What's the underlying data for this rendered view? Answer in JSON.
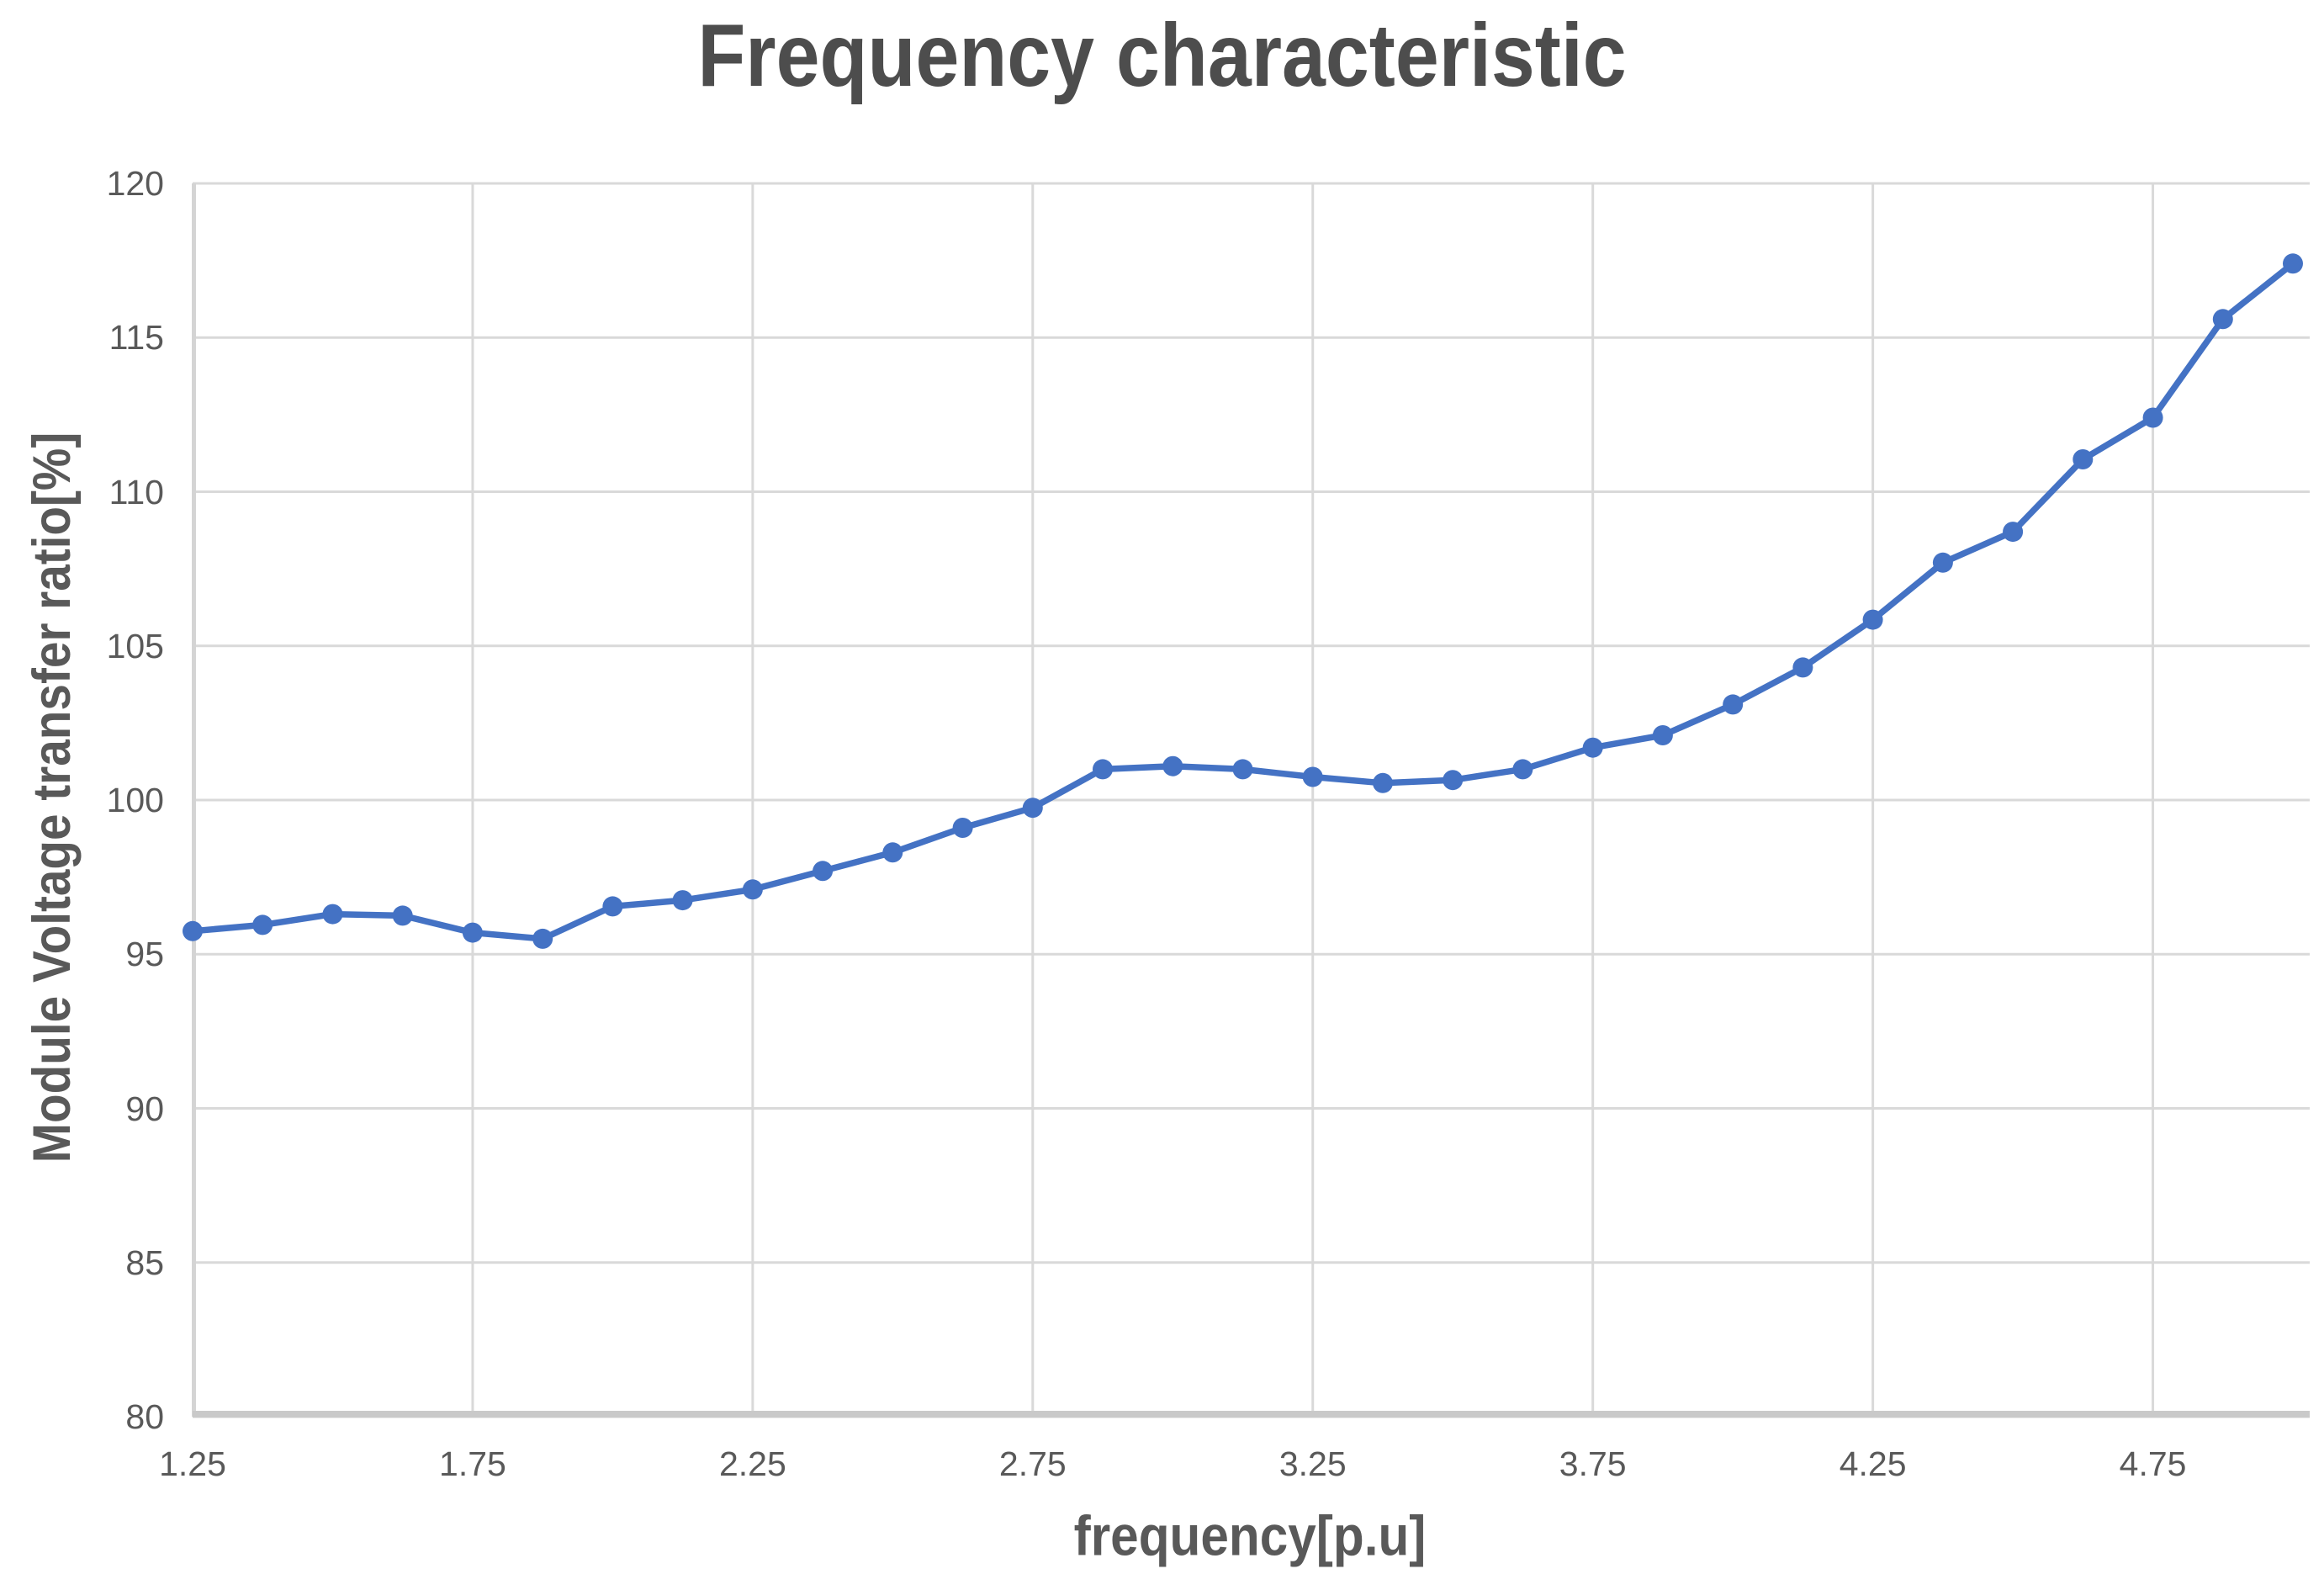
{
  "chart_data": {
    "type": "line",
    "title": "Frequency characteristic",
    "xlabel": "frequency[p.u]",
    "ylabel": "Module Voltage transfer ratio[%]",
    "x": [
      1.25,
      1.375,
      1.5,
      1.625,
      1.75,
      1.875,
      2.0,
      2.125,
      2.25,
      2.375,
      2.5,
      2.625,
      2.75,
      2.875,
      3.0,
      3.125,
      3.25,
      3.375,
      3.5,
      3.625,
      3.75,
      3.875,
      4.0,
      4.125,
      4.25,
      4.375,
      4.5,
      4.625,
      4.75,
      4.875,
      5.0
    ],
    "y": [
      95.75,
      95.95,
      96.3,
      96.25,
      95.7,
      95.5,
      96.55,
      96.75,
      97.1,
      97.7,
      98.3,
      99.1,
      99.75,
      101.0,
      101.1,
      101.0,
      100.75,
      100.55,
      100.65,
      101.0,
      101.7,
      102.1,
      103.1,
      104.3,
      105.85,
      107.7,
      108.7,
      111.05,
      112.4,
      115.6,
      117.4
    ],
    "x_ticks": [
      "1.25",
      "1.75",
      "2.25",
      "2.75",
      "3.25",
      "3.75",
      "4.25",
      "4.75"
    ],
    "x_gridlines": [
      1.75,
      2.25,
      2.75,
      3.25,
      3.75,
      4.25,
      4.75
    ],
    "y_ticks": [
      80,
      85,
      90,
      95,
      100,
      105,
      110,
      115,
      120
    ],
    "xlim": [
      1.25,
      5.03
    ],
    "ylim": [
      80,
      120
    ],
    "grid": true,
    "legend_position": "none",
    "marker": "circle",
    "colors": {
      "line": "#4472C4",
      "gridline": "#D9D9D9",
      "x_axis_line": "#C9C9C9",
      "y_axis_line": "#D4D4D4",
      "tick_text": "#595959",
      "title_text": "#4D4D4D"
    }
  }
}
